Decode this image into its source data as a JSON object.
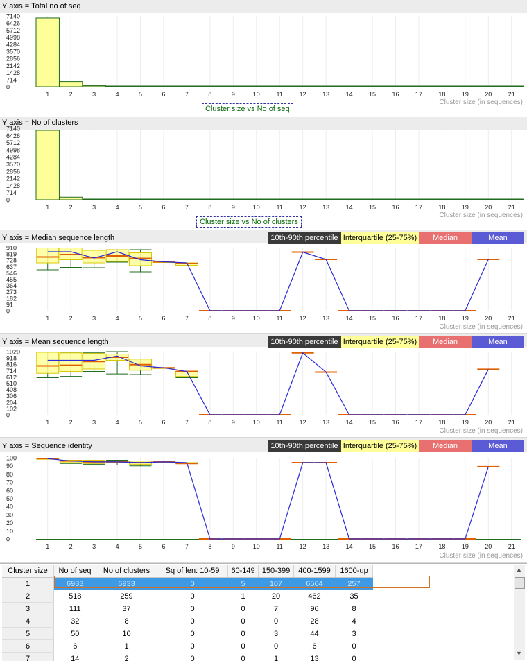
{
  "legend": {
    "p1090": "10th-90th percentile",
    "iqr": "Interquartile (25-75%)",
    "median": "Median",
    "mean": "Mean"
  },
  "colors": {
    "bar_fill": "#ffff99",
    "bar_stroke": "#1f6b1f",
    "box_fill": "#ffff99",
    "whisker": "#1f6b1f",
    "median": "#e06000",
    "mean": "#2a2ad8",
    "selection": "#3f9ae6"
  },
  "chart_data": [
    {
      "type": "bar",
      "panel_title": "Y axis = Total no of seq",
      "title": "Cluster size vs No of seq",
      "xlabel": "Cluster size (in sequences)",
      "categories": [
        "1",
        "2",
        "3",
        "4",
        "5",
        "6",
        "7",
        "8",
        "9",
        "10",
        "11",
        "12",
        "13",
        "14",
        "15",
        "16",
        "17",
        "18",
        "19",
        "20",
        "21"
      ],
      "values": [
        6933,
        518,
        111,
        32,
        50,
        6,
        14,
        0,
        0,
        0,
        0,
        0,
        0,
        0,
        0,
        0,
        0,
        0,
        0,
        0,
        0
      ],
      "yticks": [
        "7140",
        "6426",
        "5712",
        "4998",
        "4284",
        "3570",
        "2856",
        "2142",
        "1428",
        "714",
        "0"
      ],
      "ylim": [
        0,
        7140
      ]
    },
    {
      "type": "bar",
      "panel_title": "Y axis = No of clusters",
      "title": "Cluster size vs No of clusters",
      "xlabel": "Cluster size (in sequences)",
      "categories": [
        "1",
        "2",
        "3",
        "4",
        "5",
        "6",
        "7",
        "8",
        "9",
        "10",
        "11",
        "12",
        "13",
        "14",
        "15",
        "16",
        "17",
        "18",
        "19",
        "20",
        "21"
      ],
      "values": [
        6933,
        259,
        37,
        8,
        10,
        1,
        2,
        0,
        0,
        0,
        0,
        0,
        0,
        0,
        0,
        0,
        0,
        0,
        0,
        0,
        0
      ],
      "yticks": [
        "7140",
        "6426",
        "5712",
        "4998",
        "4284",
        "3570",
        "2856",
        "2142",
        "1428",
        "714",
        "0"
      ],
      "ylim": [
        0,
        7140
      ]
    },
    {
      "type": "box",
      "panel_title": "Y axis = Median sequence length",
      "xlabel": "Cluster size (in sequences)",
      "categories": [
        "1",
        "2",
        "3",
        "4",
        "5",
        "6",
        "7",
        "8",
        "9",
        "10",
        "11",
        "12",
        "13",
        "14",
        "15",
        "16",
        "17",
        "18",
        "19",
        "20",
        "21"
      ],
      "yticks": [
        "910",
        "819",
        "728",
        "637",
        "546",
        "455",
        "364",
        "273",
        "182",
        "91",
        "0"
      ],
      "ylim": [
        0,
        910
      ],
      "boxes": [
        {
          "x": 1,
          "p10": 590,
          "q1": 690,
          "median": 775,
          "q3": 905,
          "p90": 905,
          "mean": 850
        },
        {
          "x": 2,
          "p10": 625,
          "q1": 735,
          "median": 810,
          "q3": 905,
          "p90": 905,
          "mean": 850
        },
        {
          "x": 3,
          "p10": 620,
          "q1": 690,
          "median": 765,
          "q3": 870,
          "p90": 870,
          "mean": 760
        },
        {
          "x": 4,
          "p10": 700,
          "q1": 710,
          "median": 790,
          "q3": 880,
          "p90": 880,
          "mean": 850
        },
        {
          "x": 5,
          "p10": 560,
          "q1": 650,
          "median": 755,
          "q3": 835,
          "p90": 880,
          "mean": 735
        },
        {
          "x": 6,
          "p10": 705,
          "q1": 705,
          "median": 705,
          "q3": 705,
          "p90": 705,
          "mean": 705
        },
        {
          "x": 7,
          "p10": 655,
          "q1": 655,
          "median": 680,
          "q3": 690,
          "p90": 690,
          "mean": 690
        },
        {
          "x": 8,
          "median": 0,
          "mean": 0
        },
        {
          "x": 9,
          "median": 0,
          "mean": 0
        },
        {
          "x": 10,
          "median": 0,
          "mean": 0
        },
        {
          "x": 11,
          "median": 0,
          "mean": 0
        },
        {
          "x": 12,
          "median": 845,
          "mean": 845
        },
        {
          "x": 13,
          "median": 740,
          "mean": 740
        },
        {
          "x": 14,
          "median": 0,
          "mean": 0
        },
        {
          "x": 15,
          "median": 0,
          "mean": 0
        },
        {
          "x": 16,
          "median": 0,
          "mean": 0
        },
        {
          "x": 17,
          "median": 0,
          "mean": 0
        },
        {
          "x": 18,
          "median": 0,
          "mean": 0
        },
        {
          "x": 19,
          "median": 0,
          "mean": 0
        },
        {
          "x": 20,
          "median": 740,
          "mean": 740
        }
      ]
    },
    {
      "type": "box",
      "panel_title": "Y axis = Mean sequence length",
      "xlabel": "Cluster size (in sequences)",
      "categories": [
        "1",
        "2",
        "3",
        "4",
        "5",
        "6",
        "7",
        "8",
        "9",
        "10",
        "11",
        "12",
        "13",
        "14",
        "15",
        "16",
        "17",
        "18",
        "19",
        "20",
        "21"
      ],
      "yticks": [
        "1020",
        "918",
        "816",
        "714",
        "612",
        "510",
        "408",
        "306",
        "204",
        "102",
        "0"
      ],
      "ylim": [
        0,
        1020
      ],
      "boxes": [
        {
          "x": 1,
          "p10": 600,
          "q1": 670,
          "median": 790,
          "q3": 1010,
          "p90": 1010,
          "mean": 880
        },
        {
          "x": 2,
          "p10": 620,
          "q1": 700,
          "median": 800,
          "q3": 1000,
          "p90": 1000,
          "mean": 880
        },
        {
          "x": 3,
          "p10": 700,
          "q1": 740,
          "median": 860,
          "q3": 990,
          "p90": 1000,
          "mean": 880
        },
        {
          "x": 4,
          "p10": 660,
          "q1": 880,
          "median": 930,
          "q3": 980,
          "p90": 1020,
          "mean": 950
        },
        {
          "x": 5,
          "p10": 650,
          "q1": 720,
          "median": 810,
          "q3": 900,
          "p90": 900,
          "mean": 790
        },
        {
          "x": 6,
          "p10": 760,
          "q1": 760,
          "median": 760,
          "q3": 760,
          "p90": 760,
          "mean": 760
        },
        {
          "x": 7,
          "p10": 600,
          "q1": 620,
          "median": 700,
          "q3": 700,
          "p90": 700,
          "mean": 700
        },
        {
          "x": 8,
          "median": 0,
          "mean": 0
        },
        {
          "x": 9,
          "median": 0,
          "mean": 0
        },
        {
          "x": 10,
          "median": 0,
          "mean": 0
        },
        {
          "x": 11,
          "median": 0,
          "mean": 0
        },
        {
          "x": 12,
          "median": 1000,
          "mean": 1000
        },
        {
          "x": 13,
          "median": 690,
          "mean": 690
        },
        {
          "x": 14,
          "median": 0,
          "mean": 0
        },
        {
          "x": 15,
          "median": 0,
          "mean": 0
        },
        {
          "x": 16,
          "median": 0,
          "mean": 0
        },
        {
          "x": 17,
          "median": 0,
          "mean": 0
        },
        {
          "x": 18,
          "median": 0,
          "mean": 0
        },
        {
          "x": 19,
          "median": 0,
          "mean": 0
        },
        {
          "x": 20,
          "median": 735,
          "mean": 735
        }
      ]
    },
    {
      "type": "box",
      "panel_title": "Y axis = Sequence identity",
      "xlabel": "Cluster size (in sequences)",
      "categories": [
        "1",
        "2",
        "3",
        "4",
        "5",
        "6",
        "7",
        "8",
        "9",
        "10",
        "11",
        "12",
        "13",
        "14",
        "15",
        "16",
        "17",
        "18",
        "19",
        "20",
        "21"
      ],
      "yticks": [
        "100",
        "90",
        "80",
        "70",
        "60",
        "50",
        "40",
        "30",
        "20",
        "10",
        "0"
      ],
      "ylim": [
        0,
        100
      ],
      "boxes": [
        {
          "x": 1,
          "p10": 99,
          "q1": 99,
          "median": 99,
          "q3": 99,
          "p90": 99,
          "mean": 99
        },
        {
          "x": 2,
          "p10": 93,
          "q1": 94,
          "median": 96,
          "q3": 97,
          "p90": 97,
          "mean": 96
        },
        {
          "x": 3,
          "p10": 92,
          "q1": 93,
          "median": 95,
          "q3": 97,
          "p90": 97,
          "mean": 95
        },
        {
          "x": 4,
          "p10": 91,
          "q1": 94,
          "median": 95,
          "q3": 96,
          "p90": 97,
          "mean": 95
        },
        {
          "x": 5,
          "p10": 90,
          "q1": 92,
          "median": 94,
          "q3": 96,
          "p90": 96,
          "mean": 94
        },
        {
          "x": 6,
          "p10": 94,
          "q1": 94,
          "median": 95,
          "q3": 95,
          "p90": 95,
          "mean": 95
        },
        {
          "x": 7,
          "p10": 93,
          "q1": 93,
          "median": 93,
          "q3": 94,
          "p90": 94,
          "mean": 94
        },
        {
          "x": 8,
          "median": 0,
          "mean": 0
        },
        {
          "x": 9,
          "median": 0,
          "mean": 0
        },
        {
          "x": 10,
          "median": 0,
          "mean": 0
        },
        {
          "x": 11,
          "median": 0,
          "mean": 0
        },
        {
          "x": 12,
          "median": 94,
          "mean": 94
        },
        {
          "x": 13,
          "median": 94,
          "mean": 94
        },
        {
          "x": 14,
          "median": 0,
          "mean": 0
        },
        {
          "x": 15,
          "median": 0,
          "mean": 0
        },
        {
          "x": 16,
          "median": 0,
          "mean": 0
        },
        {
          "x": 17,
          "median": 0,
          "mean": 0
        },
        {
          "x": 18,
          "median": 0,
          "mean": 0
        },
        {
          "x": 19,
          "median": 0,
          "mean": 0
        },
        {
          "x": 20,
          "median": 89,
          "mean": 89
        }
      ]
    }
  ],
  "table": {
    "headers": [
      "Cluster size",
      "No of seq",
      "No of clusters",
      "Sq of len: 10-59",
      "60-149",
      "150-399",
      "400-1599",
      "1600-up"
    ],
    "rows": [
      [
        "1",
        "6933",
        "6933",
        "0",
        "5",
        "107",
        "6564",
        "257"
      ],
      [
        "2",
        "518",
        "259",
        "0",
        "1",
        "20",
        "462",
        "35"
      ],
      [
        "3",
        "111",
        "37",
        "0",
        "0",
        "7",
        "96",
        "8"
      ],
      [
        "4",
        "32",
        "8",
        "0",
        "0",
        "0",
        "28",
        "4"
      ],
      [
        "5",
        "50",
        "10",
        "0",
        "0",
        "3",
        "44",
        "3"
      ],
      [
        "6",
        "6",
        "1",
        "0",
        "0",
        "0",
        "6",
        "0"
      ],
      [
        "7",
        "14",
        "2",
        "0",
        "0",
        "1",
        "13",
        "0"
      ]
    ],
    "selected_row": 0
  }
}
